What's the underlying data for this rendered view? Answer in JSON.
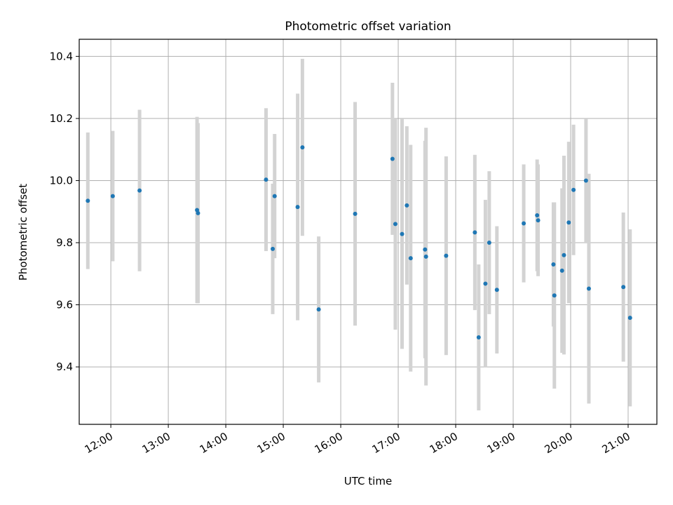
{
  "chart_data": {
    "type": "scatter",
    "title": "Photometric offset variation",
    "xlabel": "UTC time",
    "ylabel": "Photometric offset",
    "x_tick_labels": [
      "12:00",
      "13:00",
      "14:00",
      "15:00",
      "16:00",
      "17:00",
      "18:00",
      "19:00",
      "20:00",
      "21:00"
    ],
    "y_tick_labels": [
      "9.4",
      "9.6",
      "9.8",
      "10.0",
      "10.2",
      "10.4"
    ],
    "xlim": [
      "11:27",
      "21:30"
    ],
    "ylim": [
      9.215,
      10.455
    ],
    "grid": true,
    "legend": "none",
    "colors": {
      "point": "#1f77b4",
      "errorbar": "#d3d3d3",
      "grid": "#b0b0b0"
    },
    "points": [
      {
        "x": "11:36",
        "y": 9.935,
        "yerr": 0.22
      },
      {
        "x": "12:02",
        "y": 9.95,
        "yerr": 0.21
      },
      {
        "x": "12:30",
        "y": 9.968,
        "yerr": 0.26
      },
      {
        "x": "13:30",
        "y": 9.905,
        "yerr": 0.3
      },
      {
        "x": "13:31",
        "y": 9.895,
        "yerr": 0.29
      },
      {
        "x": "14:42",
        "y": 10.003,
        "yerr": 0.23
      },
      {
        "x": "14:49",
        "y": 9.78,
        "yerr": 0.21
      },
      {
        "x": "14:51",
        "y": 9.95,
        "yerr": 0.2
      },
      {
        "x": "15:15",
        "y": 9.915,
        "yerr": 0.365
      },
      {
        "x": "15:20",
        "y": 10.107,
        "yerr": 0.285
      },
      {
        "x": "15:37",
        "y": 9.585,
        "yerr": 0.235
      },
      {
        "x": "16:15",
        "y": 9.893,
        "yerr": 0.36
      },
      {
        "x": "16:54",
        "y": 10.07,
        "yerr": 0.245
      },
      {
        "x": "16:57",
        "y": 9.86,
        "yerr": 0.34
      },
      {
        "x": "17:04",
        "y": 9.828,
        "yerr": 0.37
      },
      {
        "x": "17:09",
        "y": 9.92,
        "yerr": 0.255
      },
      {
        "x": "17:13",
        "y": 9.75,
        "yerr": 0.365
      },
      {
        "x": "17:28",
        "y": 9.778,
        "yerr": 0.35
      },
      {
        "x": "17:29",
        "y": 9.755,
        "yerr": 0.415
      },
      {
        "x": "17:50",
        "y": 9.758,
        "yerr": 0.32
      },
      {
        "x": "18:20",
        "y": 9.833,
        "yerr": 0.25
      },
      {
        "x": "18:24",
        "y": 9.495,
        "yerr": 0.235
      },
      {
        "x": "18:31",
        "y": 9.668,
        "yerr": 0.27
      },
      {
        "x": "18:35",
        "y": 9.8,
        "yerr": 0.23
      },
      {
        "x": "18:43",
        "y": 9.648,
        "yerr": 0.205
      },
      {
        "x": "19:11",
        "y": 9.862,
        "yerr": 0.19
      },
      {
        "x": "19:25",
        "y": 9.888,
        "yerr": 0.18
      },
      {
        "x": "19:26",
        "y": 9.872,
        "yerr": 0.18
      },
      {
        "x": "19:42",
        "y": 9.73,
        "yerr": 0.2
      },
      {
        "x": "19:43",
        "y": 9.63,
        "yerr": 0.3
      },
      {
        "x": "19:51",
        "y": 9.71,
        "yerr": 0.265
      },
      {
        "x": "19:53",
        "y": 9.76,
        "yerr": 0.32
      },
      {
        "x": "19:58",
        "y": 9.865,
        "yerr": 0.26
      },
      {
        "x": "20:03",
        "y": 9.97,
        "yerr": 0.21
      },
      {
        "x": "20:16",
        "y": 10.0,
        "yerr": 0.2
      },
      {
        "x": "20:19",
        "y": 9.652,
        "yerr": 0.37
      },
      {
        "x": "20:55",
        "y": 9.657,
        "yerr": 0.24
      },
      {
        "x": "21:02",
        "y": 9.558,
        "yerr": 0.285
      }
    ]
  }
}
